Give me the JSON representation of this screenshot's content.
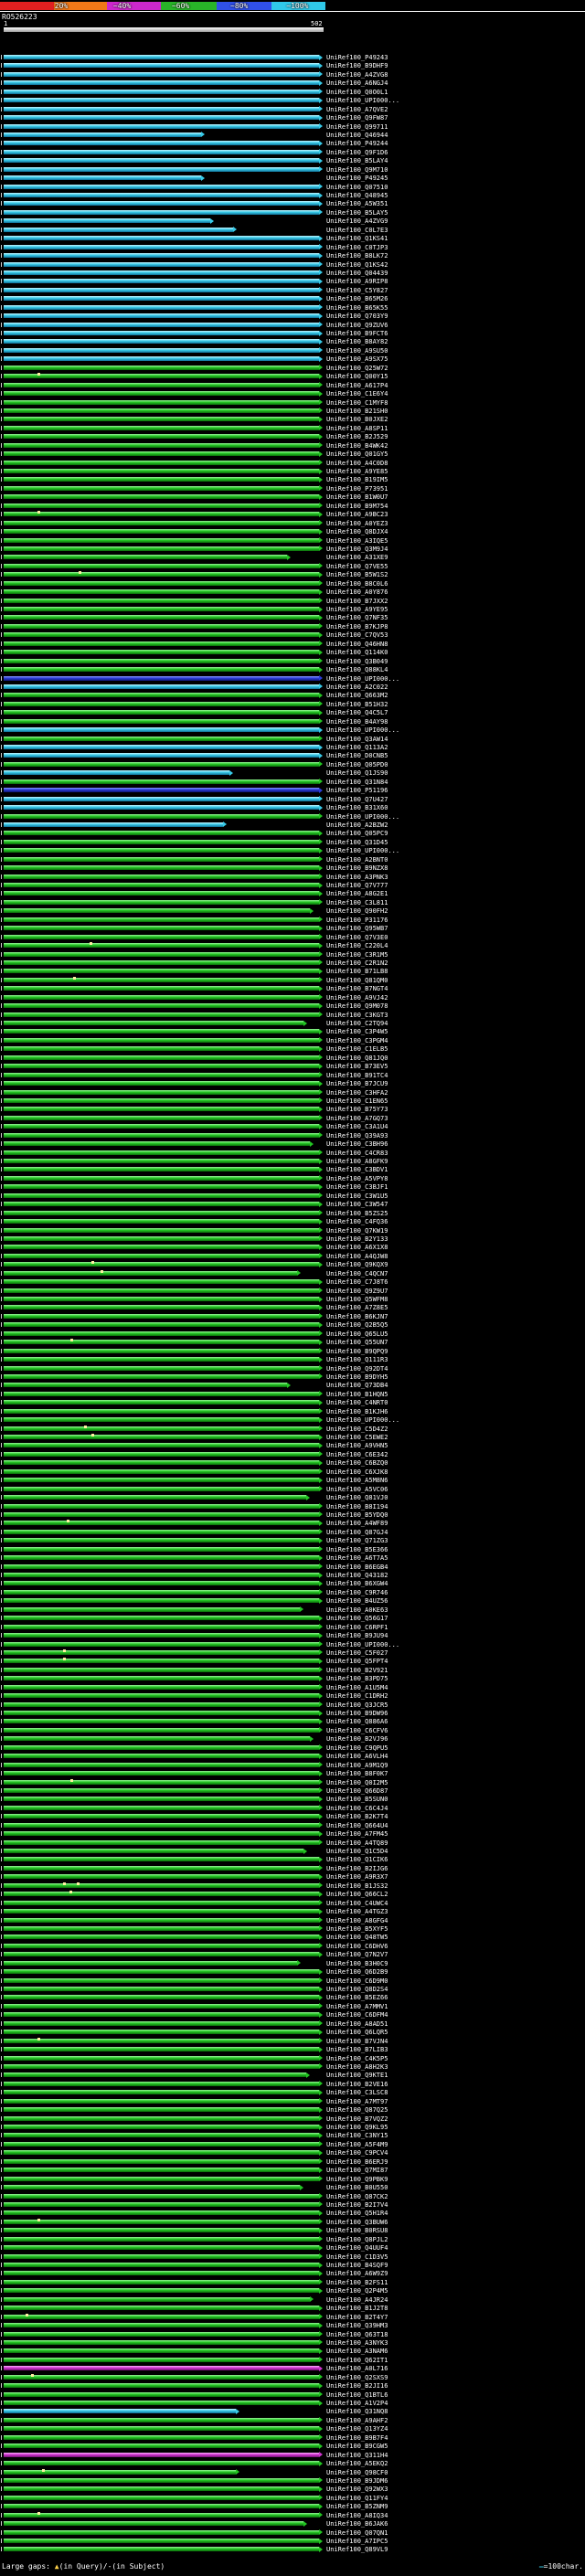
{
  "header": {
    "query_name": "RO526223",
    "query_start": "1",
    "query_end": "502"
  },
  "scale": {
    "segments": [
      {
        "color": "#e02020",
        "w": 0.165
      },
      {
        "color": "#f07818",
        "w": 0.165
      },
      {
        "color": "#cc28cc",
        "w": 0.165
      },
      {
        "color": "#28b428",
        "w": 0.17
      },
      {
        "color": "#3050e8",
        "w": 0.17
      },
      {
        "color": "#30c8e8",
        "w": 0.165
      }
    ],
    "labels": [
      {
        "text": "20%",
        "x": 0.168
      },
      {
        "text": "~40%",
        "x": 0.348
      },
      {
        "text": "~60%",
        "x": 0.528
      },
      {
        "text": "~80%",
        "x": 0.708
      },
      {
        "text": "~100%",
        "x": 0.88
      }
    ]
  },
  "footer": {
    "gaps_prefix": "Large gaps: ",
    "gaps_triangle": "▲",
    "gaps_suffix": "(in Query)/-(in Subject)",
    "scale_symbol": "—",
    "scale_text": "=100char."
  },
  "colors": {
    "g": "#23c523",
    "c": "#38cbe8",
    "m": "#d035d0",
    "b": "#2b3cd6",
    "gap": "#fff0a0"
  },
  "chart_data": {
    "type": "bar",
    "orientation": "horizontal",
    "title": "BLAST hit overview for query RO526223",
    "x_range": [
      1,
      502
    ],
    "row_prefix": "UniRef100_",
    "rows": [
      {
        "l": "P49243",
        "c": "c"
      },
      {
        "l": "B9DHF9",
        "c": "c"
      },
      {
        "l": "A4ZVG8",
        "c": "c"
      },
      {
        "l": "A6NGJ4",
        "c": "c"
      },
      {
        "l": "Q0O0L1",
        "c": "c"
      },
      {
        "l": "UPI000...",
        "c": "c"
      },
      {
        "l": "A7QVE2",
        "c": "c"
      },
      {
        "l": "Q9FW87",
        "c": "c"
      },
      {
        "l": "Q99711",
        "c": "c"
      },
      {
        "l": "Q46944",
        "c": "c",
        "e": 316
      },
      {
        "l": "P49244",
        "c": "c"
      },
      {
        "l": "Q9F1D6",
        "c": "c"
      },
      {
        "l": "B5LAY4",
        "c": "c"
      },
      {
        "l": "Q9M710",
        "c": "c"
      },
      {
        "l": "P49245",
        "c": "c",
        "e": 316
      },
      {
        "l": "Q07510",
        "c": "c"
      },
      {
        "l": "Q48945",
        "c": "c"
      },
      {
        "l": "A5W351",
        "c": "c"
      },
      {
        "l": "B5LAY5",
        "c": "c"
      },
      {
        "l": "A4ZVG9",
        "c": "c",
        "e": 331
      },
      {
        "l": "C0L7E3",
        "c": "c",
        "e": 366
      },
      {
        "l": "Q1KS41",
        "c": "c"
      },
      {
        "l": "C0TJP3",
        "c": "c"
      },
      {
        "l": "B8LK72",
        "c": "c"
      },
      {
        "l": "Q1KS42",
        "c": "c"
      },
      {
        "l": "Q04439",
        "c": "c"
      },
      {
        "l": "A9RIP8",
        "c": "c"
      },
      {
        "l": "C5Y827",
        "c": "c"
      },
      {
        "l": "B65M26",
        "c": "c"
      },
      {
        "l": "B65K55",
        "c": "c"
      },
      {
        "l": "Q703Y9",
        "c": "c"
      },
      {
        "l": "Q9ZUV6",
        "c": "c"
      },
      {
        "l": "B9FCT6",
        "c": "c"
      },
      {
        "l": "B8AY82",
        "c": "c"
      },
      {
        "l": "A9SU50",
        "c": "c"
      },
      {
        "l": "A9SX75",
        "c": "c"
      },
      {
        "l": "Q25W72"
      },
      {
        "l": "Q00Y15",
        "g": [
          54
        ]
      },
      {
        "l": "A617P4"
      },
      {
        "l": "C1E6Y4"
      },
      {
        "l": "C1MYF8"
      },
      {
        "l": "B21SH0"
      },
      {
        "l": "B0JXE2"
      },
      {
        "l": "A8SP11"
      },
      {
        "l": "B2J529"
      },
      {
        "l": "B4WK42"
      },
      {
        "l": "Q01GY5"
      },
      {
        "l": "A4C0D8"
      },
      {
        "l": "A9YE85"
      },
      {
        "l": "B19IM5"
      },
      {
        "l": "P73951"
      },
      {
        "l": "B1W0U7"
      },
      {
        "l": "B9M754"
      },
      {
        "l": "A9BC23",
        "g": [
          54
        ]
      },
      {
        "l": "A0YEZ3"
      },
      {
        "l": "Q8DJX4"
      },
      {
        "l": "A3IQE5"
      },
      {
        "l": "Q3M9J4"
      },
      {
        "l": "A31XE9",
        "e": 452
      },
      {
        "l": "Q7VE55"
      },
      {
        "l": "B5W1S2",
        "g": [
          119
        ]
      },
      {
        "l": "B8C0L6"
      },
      {
        "l": "A0Y876"
      },
      {
        "l": "B7JXX2"
      },
      {
        "l": "A9YE95"
      },
      {
        "l": "Q7NF35"
      },
      {
        "l": "B7KJP8"
      },
      {
        "l": "C7QV53"
      },
      {
        "l": "Q46HN8"
      },
      {
        "l": "Q114K0"
      },
      {
        "l": "Q3B049"
      },
      {
        "l": "Q88KL4"
      },
      {
        "l": "UPI000...",
        "c": "b"
      },
      {
        "l": "A2C022",
        "c": "c"
      },
      {
        "l": "Q663M2"
      },
      {
        "l": "B51H32"
      },
      {
        "l": "Q4C5L7"
      },
      {
        "l": "B4AY98"
      },
      {
        "l": "UPI000...",
        "c": "c"
      },
      {
        "l": "Q3AW14"
      },
      {
        "l": "Q113A2",
        "c": "c"
      },
      {
        "l": "D0CNB5",
        "c": "c"
      },
      {
        "l": "Q05PD0"
      },
      {
        "l": "Q1JS90",
        "c": "c",
        "e": 361
      },
      {
        "l": "Q31N84"
      },
      {
        "l": "P51196",
        "c": "b"
      },
      {
        "l": "Q7U427",
        "c": "c"
      },
      {
        "l": "B31X60",
        "c": "c"
      },
      {
        "l": "UPI000..."
      },
      {
        "l": "A2BZW2",
        "c": "c",
        "e": 351
      },
      {
        "l": "Q05PC9"
      },
      {
        "l": "Q31D45"
      },
      {
        "l": "UPI000..."
      },
      {
        "l": "A2BNT0"
      },
      {
        "l": "B9NZX8"
      },
      {
        "l": "A3PNK3"
      },
      {
        "l": "Q7V777"
      },
      {
        "l": "A8G2E1"
      },
      {
        "l": "C3L811"
      },
      {
        "l": "Q90FH2",
        "e": 487
      },
      {
        "l": "P31176"
      },
      {
        "l": "Q95WB7"
      },
      {
        "l": "Q7V3E0"
      },
      {
        "l": "C220L4",
        "g": [
          136
        ]
      },
      {
        "l": "C3R1M5"
      },
      {
        "l": "C2R1N2"
      },
      {
        "l": "B71LB8"
      },
      {
        "l": "Q81QM0",
        "g": [
          111
        ]
      },
      {
        "l": "B7NGT4"
      },
      {
        "l": "A9VJ42"
      },
      {
        "l": "Q9M078"
      },
      {
        "l": "C3KGT3"
      },
      {
        "l": "C2TQ94",
        "e": 477
      },
      {
        "l": "C3P4W5"
      },
      {
        "l": "C3PGM4"
      },
      {
        "l": "C1ELB5"
      },
      {
        "l": "Q81JQ0"
      },
      {
        "l": "B73EV5"
      },
      {
        "l": "B91TC4"
      },
      {
        "l": "B7JCU9"
      },
      {
        "l": "C3HFA2"
      },
      {
        "l": "C1EN65"
      },
      {
        "l": "B75Y73"
      },
      {
        "l": "A7GQ73"
      },
      {
        "l": "C3A1U4"
      },
      {
        "l": "Q39A93"
      },
      {
        "l": "C3BH96",
        "e": 487
      },
      {
        "l": "C4CR83"
      },
      {
        "l": "A8GFK9"
      },
      {
        "l": "C3BDV1"
      },
      {
        "l": "A5VPY8"
      },
      {
        "l": "C3BJF1"
      },
      {
        "l": "C3W1U5"
      },
      {
        "l": "C3W547"
      },
      {
        "l": "B5ZS25"
      },
      {
        "l": "C4FQ36"
      },
      {
        "l": "Q7KW19"
      },
      {
        "l": "B2Y133"
      },
      {
        "l": "A6X1X8"
      },
      {
        "l": "A4QJW8"
      },
      {
        "l": "Q9KQX9",
        "g": [
          139
        ]
      },
      {
        "l": "C4QCN7",
        "e": 467,
        "g": [
          154
        ]
      },
      {
        "l": "C7J8T6"
      },
      {
        "l": "Q9Z9U7"
      },
      {
        "l": "Q5WFM8"
      },
      {
        "l": "A7Z8E5"
      },
      {
        "l": "B6KJN7"
      },
      {
        "l": "Q2B5Q5"
      },
      {
        "l": "Q65LU5"
      },
      {
        "l": "Q55UN7",
        "g": [
          106
        ]
      },
      {
        "l": "B9QPQ9"
      },
      {
        "l": "Q111R3"
      },
      {
        "l": "Q92DT4"
      },
      {
        "l": "B9DYH5"
      },
      {
        "l": "Q73DB4",
        "e": 452
      },
      {
        "l": "B1HQN5"
      },
      {
        "l": "C4NRT0"
      },
      {
        "l": "B1KJH6"
      },
      {
        "l": "UPI000..."
      },
      {
        "l": "C5D4Z2",
        "g": [
          127
        ]
      },
      {
        "l": "C5EWE2",
        "g": [
          139
        ]
      },
      {
        "l": "A9VHN5"
      },
      {
        "l": "C6E342"
      },
      {
        "l": "C6BZQ0"
      },
      {
        "l": "C6XJK8"
      },
      {
        "l": "A5M8N6"
      },
      {
        "l": "A5VC06"
      },
      {
        "l": "Q81VJ0",
        "e": 482
      },
      {
        "l": "B8I194"
      },
      {
        "l": "B5YDQ0"
      },
      {
        "l": "A4WF89",
        "g": [
          101
        ]
      },
      {
        "l": "Q87GJ4"
      },
      {
        "l": "Q71ZG3"
      },
      {
        "l": "B5E366"
      },
      {
        "l": "A6T7A5"
      },
      {
        "l": "B6EGB4"
      },
      {
        "l": "Q43182"
      },
      {
        "l": "B6XGW4"
      },
      {
        "l": "C9R746"
      },
      {
        "l": "B4UZ56"
      },
      {
        "l": "A0KE63",
        "e": 472
      },
      {
        "l": "Q56G17"
      },
      {
        "l": "C6RPF1"
      },
      {
        "l": "B9JU94"
      },
      {
        "l": "UPI000..."
      },
      {
        "l": "C5F027",
        "g": [
          94
        ]
      },
      {
        "l": "Q5FPT4",
        "g": [
          94
        ]
      },
      {
        "l": "B2V921"
      },
      {
        "l": "B3PD75"
      },
      {
        "l": "A1U5M4"
      },
      {
        "l": "C1DRH2"
      },
      {
        "l": "Q3JCR5"
      },
      {
        "l": "B9DW96"
      },
      {
        "l": "Q886A6"
      },
      {
        "l": "C6CFV6"
      },
      {
        "l": "B2VJ96",
        "e": 487
      },
      {
        "l": "C9QPU5"
      },
      {
        "l": "A6VLH4"
      },
      {
        "l": "A9M1Q9"
      },
      {
        "l": "B8F0K7"
      },
      {
        "l": "Q0I2M5",
        "g": [
          106
        ]
      },
      {
        "l": "Q66D87"
      },
      {
        "l": "B5SUN0"
      },
      {
        "l": "C6C4J4"
      },
      {
        "l": "B2K7T4"
      },
      {
        "l": "Q664U4"
      },
      {
        "l": "A7FM45"
      },
      {
        "l": "A4TQ89"
      },
      {
        "l": "Q1C5D4",
        "e": 477
      },
      {
        "l": "Q1CIK6"
      },
      {
        "l": "B2IJG6"
      },
      {
        "l": "A9R3X7"
      },
      {
        "l": "B1JS32",
        "g": [
          94,
          116
        ]
      },
      {
        "l": "Q66CL2",
        "g": [
          104
        ]
      },
      {
        "l": "C4UWC4"
      },
      {
        "l": "A4TGZ3"
      },
      {
        "l": "A8GFG4"
      },
      {
        "l": "B5XYF5"
      },
      {
        "l": "Q48TW5"
      },
      {
        "l": "C6DHV6"
      },
      {
        "l": "Q7N2V7"
      },
      {
        "l": "B3H0C9",
        "e": 467
      },
      {
        "l": "Q6D2B9"
      },
      {
        "l": "C6D9M0"
      },
      {
        "l": "Q8D2S4"
      },
      {
        "l": "B5EZ66"
      },
      {
        "l": "A7MMV1"
      },
      {
        "l": "C6DFM4"
      },
      {
        "l": "A8AD51"
      },
      {
        "l": "Q6LQR5"
      },
      {
        "l": "B7VJN4",
        "g": [
          54
        ]
      },
      {
        "l": "B7LIB3"
      },
      {
        "l": "C4K5P5"
      },
      {
        "l": "A8H2K3"
      },
      {
        "l": "Q9KTE1",
        "e": 482
      },
      {
        "l": "B2VE16"
      },
      {
        "l": "C3LSC8"
      },
      {
        "l": "A7MT97"
      },
      {
        "l": "Q87Q25"
      },
      {
        "l": "B7VQZ2"
      },
      {
        "l": "Q9KL95"
      },
      {
        "l": "C3NY15"
      },
      {
        "l": "A5F4M9"
      },
      {
        "l": "C9PCV4"
      },
      {
        "l": "B6ERJ9"
      },
      {
        "l": "Q7MI87"
      },
      {
        "l": "Q9PBK9"
      },
      {
        "l": "B0U550",
        "e": 472
      },
      {
        "l": "Q87CK2"
      },
      {
        "l": "B2I7V4"
      },
      {
        "l": "Q5H1R4"
      },
      {
        "l": "Q3BUW6",
        "g": [
          54
        ]
      },
      {
        "l": "B0RSU8"
      },
      {
        "l": "Q8PJL2"
      },
      {
        "l": "Q4UUF4"
      },
      {
        "l": "C1D3V5"
      },
      {
        "l": "B4SQF9"
      },
      {
        "l": "A6W9Z9"
      },
      {
        "l": "B2FS11"
      },
      {
        "l": "Q2P4M5"
      },
      {
        "l": "A4JR24",
        "e": 487
      },
      {
        "l": "B1J2T8"
      },
      {
        "l": "B2T4Y7",
        "g": [
          36
        ]
      },
      {
        "l": "Q39HM3"
      },
      {
        "l": "Q63T18"
      },
      {
        "l": "A3NYK3"
      },
      {
        "l": "A3NAM6"
      },
      {
        "l": "Q62IT1"
      },
      {
        "l": "A0L716",
        "c": "m"
      },
      {
        "l": "Q2SXS9",
        "g": [
          44
        ]
      },
      {
        "l": "B2JI16"
      },
      {
        "l": "Q1BTL6"
      },
      {
        "l": "A1V2P4"
      },
      {
        "l": "Q31NQ8",
        "c": "c",
        "e": 371
      },
      {
        "l": "A9AHF2"
      },
      {
        "l": "Q13YZ4"
      },
      {
        "l": "B9B7F4"
      },
      {
        "l": "B9CGW5"
      },
      {
        "l": "Q311H4",
        "c": "m"
      },
      {
        "l": "A5EKQ2"
      },
      {
        "l": "Q98CF0",
        "e": 371,
        "g": [
          61
        ]
      },
      {
        "l": "B9JDM6"
      },
      {
        "l": "Q92WX3"
      },
      {
        "l": "Q11FY4"
      },
      {
        "l": "B5ZNM9"
      },
      {
        "l": "A8IQ34",
        "g": [
          54
        ]
      },
      {
        "l": "B6JAK6",
        "e": 477
      },
      {
        "l": "Q07QN1"
      },
      {
        "l": "A7IPC5"
      },
      {
        "l": "Q89VL9"
      }
    ]
  }
}
